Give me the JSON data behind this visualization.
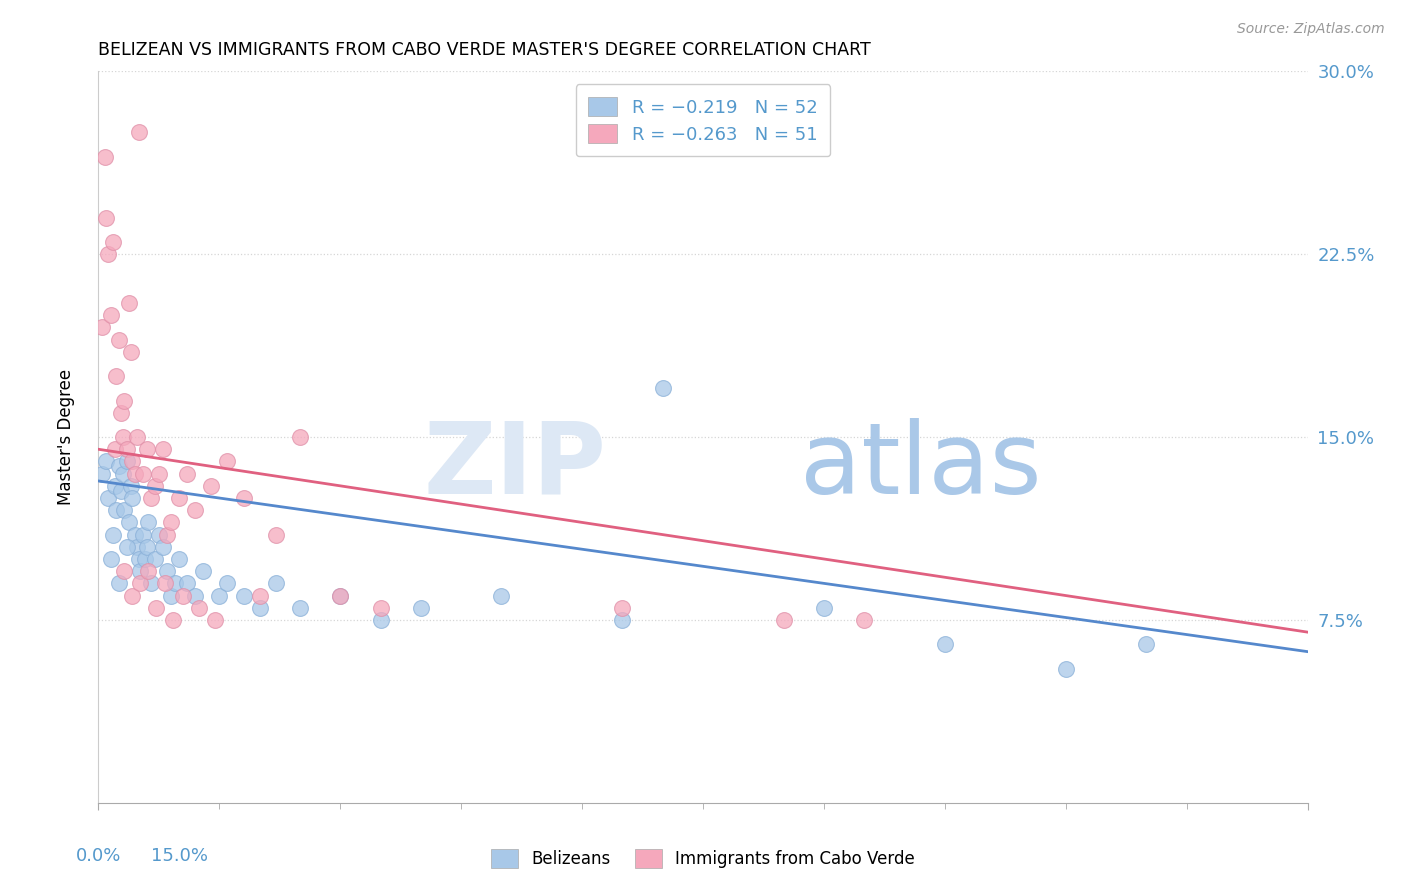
{
  "title": "BELIZEAN VS IMMIGRANTS FROM CABO VERDE MASTER'S DEGREE CORRELATION CHART",
  "source": "Source: ZipAtlas.com",
  "ylabel": "Master's Degree",
  "xlim": [
    0.0,
    15.0
  ],
  "ylim": [
    0.0,
    30.0
  ],
  "yticks": [
    7.5,
    15.0,
    22.5,
    30.0
  ],
  "ytick_labels": [
    "7.5%",
    "15.0%",
    "22.5%",
    "30.0%"
  ],
  "belizean_color": "#a8c8e8",
  "cabo_verde_color": "#f5a8bc",
  "belizean_line_color": "#5588cc",
  "cabo_verde_line_color": "#e06080",
  "text_color_blue": "#5599cc",
  "grid_color": "#cccccc",
  "watermark_zip_color": "#dde8f5",
  "watermark_atlas_color": "#aac8e8",
  "bel_line_y0": 13.2,
  "bel_line_y15": 6.2,
  "cabo_line_y0": 14.5,
  "cabo_line_y15": 7.0,
  "belizean_x": [
    0.05,
    0.1,
    0.12,
    0.18,
    0.2,
    0.22,
    0.25,
    0.28,
    0.3,
    0.32,
    0.35,
    0.38,
    0.4,
    0.42,
    0.45,
    0.48,
    0.5,
    0.52,
    0.55,
    0.58,
    0.6,
    0.62,
    0.65,
    0.7,
    0.75,
    0.8,
    0.85,
    0.9,
    0.95,
    1.0,
    1.1,
    1.2,
    1.3,
    1.5,
    1.6,
    1.8,
    2.0,
    2.2,
    2.5,
    3.0,
    3.5,
    4.0,
    5.0,
    6.5,
    7.0,
    9.0,
    10.5,
    12.0,
    13.0,
    0.15,
    0.25,
    0.35
  ],
  "belizean_y": [
    13.5,
    14.0,
    12.5,
    11.0,
    13.0,
    12.0,
    13.8,
    12.8,
    13.5,
    12.0,
    14.0,
    11.5,
    13.0,
    12.5,
    11.0,
    10.5,
    10.0,
    9.5,
    11.0,
    10.0,
    10.5,
    11.5,
    9.0,
    10.0,
    11.0,
    10.5,
    9.5,
    8.5,
    9.0,
    10.0,
    9.0,
    8.5,
    9.5,
    8.5,
    9.0,
    8.5,
    8.0,
    9.0,
    8.0,
    8.5,
    7.5,
    8.0,
    8.5,
    7.5,
    17.0,
    8.0,
    6.5,
    5.5,
    6.5,
    10.0,
    9.0,
    10.5
  ],
  "cabo_verde_x": [
    0.05,
    0.08,
    0.1,
    0.12,
    0.15,
    0.18,
    0.2,
    0.22,
    0.25,
    0.28,
    0.3,
    0.32,
    0.35,
    0.38,
    0.4,
    0.42,
    0.45,
    0.48,
    0.5,
    0.55,
    0.6,
    0.65,
    0.7,
    0.75,
    0.8,
    0.85,
    0.9,
    1.0,
    1.1,
    1.2,
    1.4,
    1.6,
    1.8,
    2.0,
    2.2,
    2.5,
    3.0,
    3.5,
    6.5,
    8.5,
    9.5,
    0.32,
    0.42,
    0.52,
    0.62,
    0.72,
    0.82,
    0.92,
    1.05,
    1.25,
    1.45
  ],
  "cabo_verde_y": [
    19.5,
    26.5,
    24.0,
    22.5,
    20.0,
    23.0,
    14.5,
    17.5,
    19.0,
    16.0,
    15.0,
    16.5,
    14.5,
    20.5,
    18.5,
    14.0,
    13.5,
    15.0,
    27.5,
    13.5,
    14.5,
    12.5,
    13.0,
    13.5,
    14.5,
    11.0,
    11.5,
    12.5,
    13.5,
    12.0,
    13.0,
    14.0,
    12.5,
    8.5,
    11.0,
    15.0,
    8.5,
    8.0,
    8.0,
    7.5,
    7.5,
    9.5,
    8.5,
    9.0,
    9.5,
    8.0,
    9.0,
    7.5,
    8.5,
    8.0,
    7.5
  ]
}
